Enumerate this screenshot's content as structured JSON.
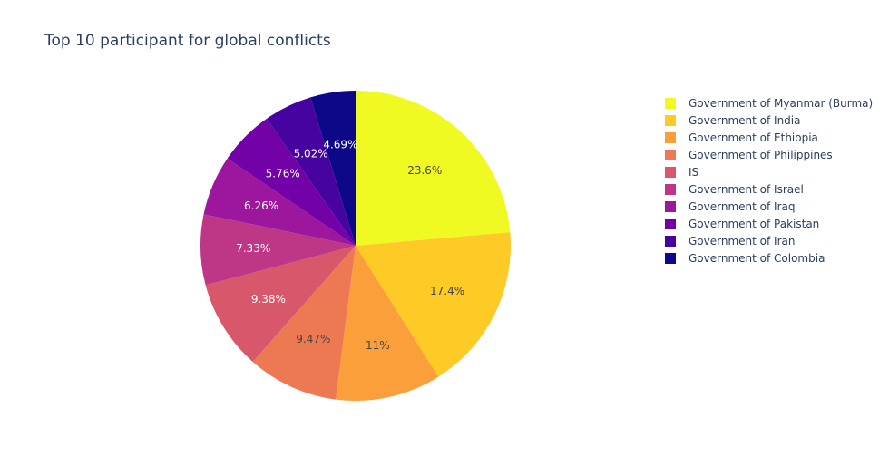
{
  "chart_data": {
    "type": "pie",
    "title": "Top 10 participant for global conflicts",
    "legend_position": "right",
    "direction": "clockwise",
    "start_angle_deg": 90,
    "labels": [
      "Government of Myanmar (Burma)",
      "Government of India",
      "Government of Ethiopia",
      "Government of Philippines",
      "IS",
      "Government of Israel",
      "Government of Iraq",
      "Government of Pakistan",
      "Government of Iran",
      "Government of Colombia"
    ],
    "values": [
      23.6,
      17.4,
      11,
      9.47,
      9.38,
      7.33,
      6.26,
      5.76,
      5.02,
      4.69
    ],
    "percent_labels": [
      "23.6%",
      "17.4%",
      "11%",
      "9.47%",
      "9.38%",
      "7.33%",
      "6.26%",
      "5.76%",
      "5.02%",
      "4.69%"
    ],
    "colors": [
      "#f0f921",
      "#fdca26",
      "#fb9f3a",
      "#ed7953",
      "#d8576b",
      "#bd3786",
      "#9c179e",
      "#7201a8",
      "#46039f",
      "#0d0887"
    ],
    "label_colors": [
      "#444444",
      "#444444",
      "#444444",
      "#444444",
      "#ffffff",
      "#ffffff",
      "#ffffff",
      "#ffffff",
      "#ffffff",
      "#ffffff"
    ]
  }
}
